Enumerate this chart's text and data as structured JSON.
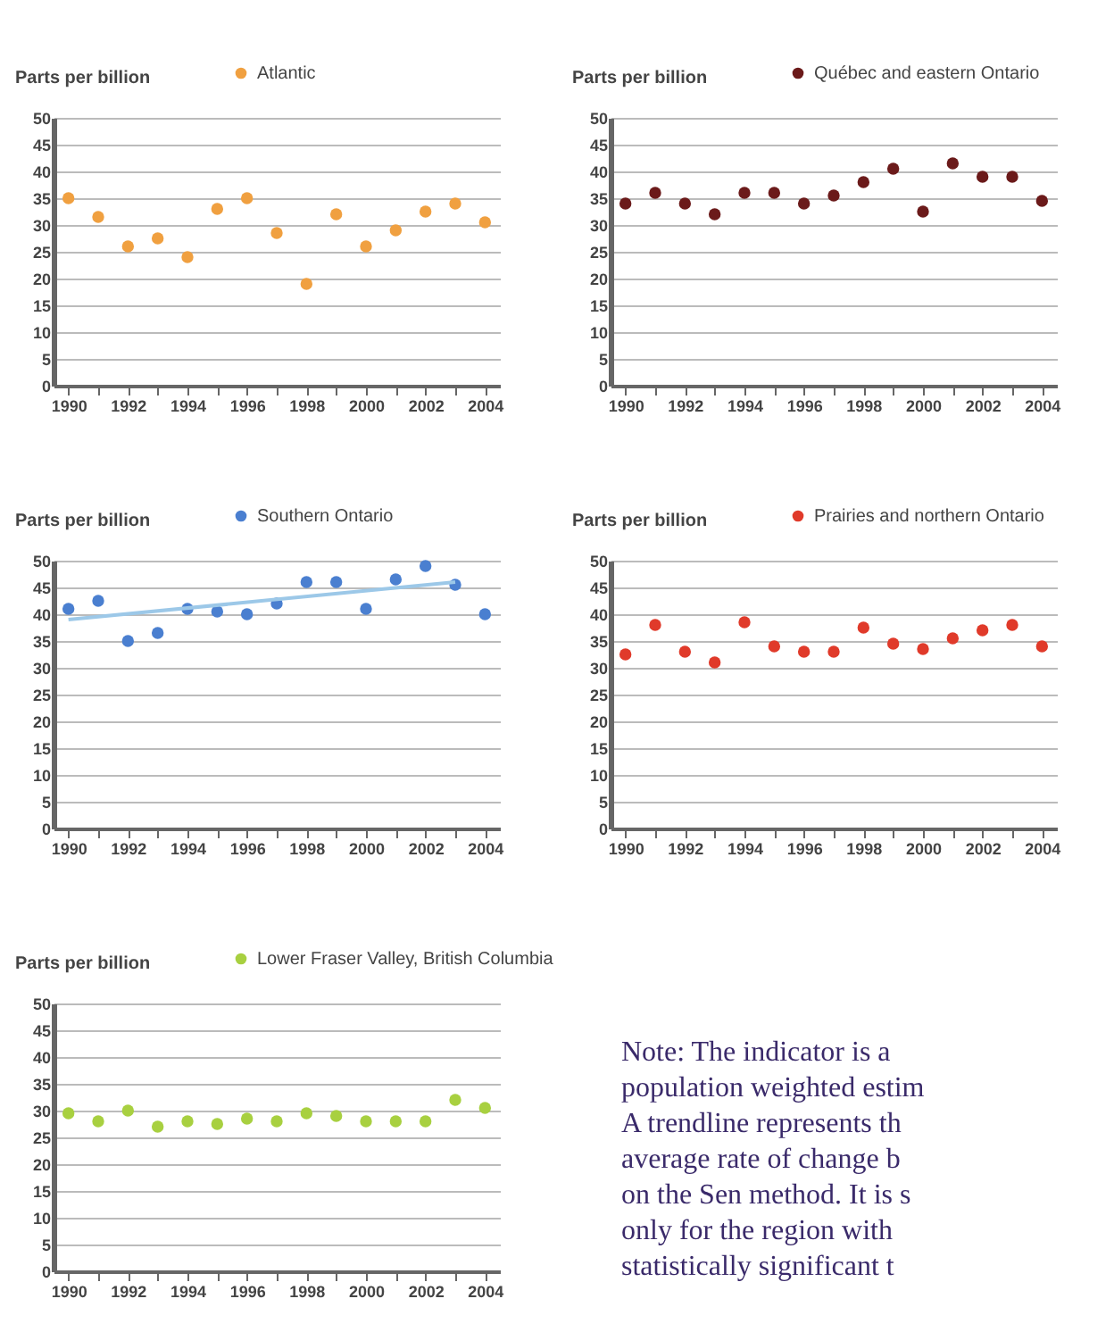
{
  "chart_data": [
    {
      "type": "scatter",
      "ylabel": "Parts per billion",
      "x": [
        1990,
        1991,
        1992,
        1993,
        1994,
        1995,
        1996,
        1997,
        1998,
        1999,
        2000,
        2001,
        2002,
        2003,
        2004
      ],
      "xlim": [
        1989.5,
        2004.5
      ],
      "xticks": [
        1990,
        {
          "value": 1991,
          "label": null
        },
        1992,
        {
          "value": 1993,
          "label": null
        },
        1994,
        {
          "value": 1995,
          "label": null
        },
        1996,
        {
          "value": 1997,
          "label": null
        },
        1998,
        {
          "value": 1999,
          "label": null
        },
        2000,
        {
          "value": 2001,
          "label": null
        },
        2002,
        {
          "value": 2003,
          "label": null
        },
        2004
      ],
      "ylim": [
        0,
        50
      ],
      "yticks": [
        0,
        5,
        10,
        15,
        20,
        25,
        30,
        35,
        40,
        45,
        50
      ],
      "grid": "y",
      "legend": "top",
      "marker": "circle",
      "series": [
        {
          "name": "Atlantic",
          "color": "#f0a040",
          "values": [
            35,
            31.5,
            26,
            27.5,
            24,
            33,
            35,
            28.5,
            19,
            32,
            26,
            29,
            32.5,
            34,
            30.5
          ]
        }
      ]
    },
    {
      "type": "scatter",
      "ylabel": "Parts per billion",
      "x": [
        1990,
        1991,
        1992,
        1993,
        1994,
        1995,
        1996,
        1997,
        1998,
        1999,
        2000,
        2001,
        2002,
        2003,
        2004
      ],
      "xlim": [
        1989.5,
        2004.5
      ],
      "xticks": [
        1990,
        {
          "value": 1991,
          "label": null
        },
        1992,
        {
          "value": 1993,
          "label": null
        },
        1994,
        {
          "value": 1995,
          "label": null
        },
        1996,
        {
          "value": 1997,
          "label": null
        },
        1998,
        {
          "value": 1999,
          "label": null
        },
        2000,
        {
          "value": 2001,
          "label": null
        },
        2002,
        {
          "value": 2003,
          "label": null
        },
        2004
      ],
      "ylim": [
        0,
        50
      ],
      "yticks": [
        0,
        5,
        10,
        15,
        20,
        25,
        30,
        35,
        40,
        45,
        50
      ],
      "grid": "y",
      "legend": "top",
      "marker": "circle",
      "series": [
        {
          "name": "Québec and eastern Ontario",
          "color": "#6b1a1a",
          "values": [
            34,
            36,
            34,
            32,
            36,
            36,
            34,
            35.5,
            38,
            40.5,
            32.5,
            41.5,
            39,
            39,
            34.5
          ]
        }
      ]
    },
    {
      "type": "scatter",
      "ylabel": "Parts per billion",
      "x": [
        1990,
        1991,
        1992,
        1993,
        1994,
        1995,
        1996,
        1997,
        1998,
        1999,
        2000,
        2001,
        2002,
        2003,
        2004
      ],
      "xlim": [
        1989.5,
        2004.5
      ],
      "xticks": [
        1990,
        {
          "value": 1991,
          "label": null
        },
        1992,
        {
          "value": 1993,
          "label": null
        },
        1994,
        {
          "value": 1995,
          "label": null
        },
        1996,
        {
          "value": 1997,
          "label": null
        },
        1998,
        {
          "value": 1999,
          "label": null
        },
        2000,
        {
          "value": 2001,
          "label": null
        },
        2002,
        {
          "value": 2003,
          "label": null
        },
        2004
      ],
      "ylim": [
        0,
        50
      ],
      "yticks": [
        0,
        5,
        10,
        15,
        20,
        25,
        30,
        35,
        40,
        45,
        50
      ],
      "grid": "y",
      "legend": "top",
      "marker": "circle",
      "series": [
        {
          "name": "Southern Ontario",
          "color": "#4a7fd0",
          "values": [
            41,
            42.5,
            35,
            36.5,
            41,
            40.5,
            40,
            42,
            46,
            46,
            41,
            46.5,
            49,
            45.5,
            40
          ]
        },
        {
          "type": "line",
          "color": "#9cc8e8",
          "marker": "none",
          "x": [
            1990,
            2003
          ],
          "values": [
            39,
            46
          ]
        }
      ]
    },
    {
      "type": "scatter",
      "ylabel": "Parts per billion",
      "x": [
        1990,
        1991,
        1992,
        1993,
        1994,
        1995,
        1996,
        1997,
        1998,
        1999,
        2000,
        2001,
        2002,
        2003,
        2004
      ],
      "xlim": [
        1989.5,
        2004.5
      ],
      "xticks": [
        1990,
        {
          "value": 1991,
          "label": null
        },
        1992,
        {
          "value": 1993,
          "label": null
        },
        1994,
        {
          "value": 1995,
          "label": null
        },
        1996,
        {
          "value": 1997,
          "label": null
        },
        1998,
        {
          "value": 1999,
          "label": null
        },
        2000,
        {
          "value": 2001,
          "label": null
        },
        2002,
        {
          "value": 2003,
          "label": null
        },
        2004
      ],
      "ylim": [
        0,
        50
      ],
      "yticks": [
        0,
        5,
        10,
        15,
        20,
        25,
        30,
        35,
        40,
        45,
        50
      ],
      "grid": "y",
      "legend": "top",
      "marker": "circle",
      "series": [
        {
          "name": "Prairies and northern Ontario",
          "color": "#e03a2a",
          "values": [
            32.5,
            38,
            33,
            31,
            38.5,
            34,
            33,
            33,
            37.5,
            34.5,
            33.5,
            35.5,
            37,
            38,
            34
          ]
        }
      ]
    },
    {
      "type": "scatter",
      "ylabel": "Parts per billion",
      "x": [
        1990,
        1991,
        1992,
        1993,
        1994,
        1995,
        1996,
        1997,
        1998,
        1999,
        2000,
        2001,
        2002,
        2003,
        2004
      ],
      "xlim": [
        1989.5,
        2004.5
      ],
      "xticks": [
        1990,
        {
          "value": 1991,
          "label": null
        },
        1992,
        {
          "value": 1993,
          "label": null
        },
        1994,
        {
          "value": 1995,
          "label": null
        },
        1996,
        {
          "value": 1997,
          "label": null
        },
        1998,
        {
          "value": 1999,
          "label": null
        },
        2000,
        {
          "value": 2001,
          "label": null
        },
        2002,
        {
          "value": 2003,
          "label": null
        },
        2004
      ],
      "ylim": [
        0,
        50
      ],
      "yticks": [
        0,
        5,
        10,
        15,
        20,
        25,
        30,
        35,
        40,
        45,
        50
      ],
      "grid": "y",
      "legend": "top",
      "marker": "circle",
      "annotations": [
        "Note: The indicator is a\npopulation weighted estim\nA trendline represents th\naverage rate of change b\non the Sen method. It is s\nonly for the region with\nstatistically significant t"
      ],
      "series": [
        {
          "name": "Lower Fraser Valley, British Columbia",
          "color": "#a8d040",
          "values": [
            29.5,
            28,
            30,
            27,
            28,
            27.5,
            28.5,
            28,
            29.5,
            29,
            28,
            28,
            28,
            32,
            30.5
          ]
        }
      ]
    }
  ]
}
